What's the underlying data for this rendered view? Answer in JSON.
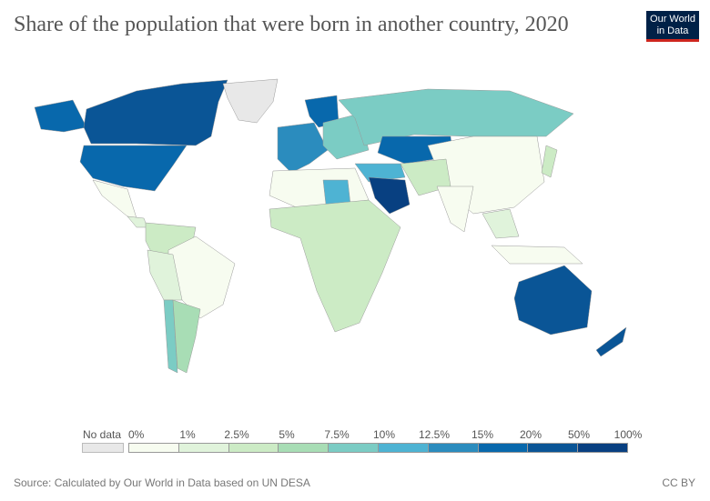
{
  "title": "Share of the population that were born in another country, 2020",
  "logo": {
    "line1": "Our World",
    "line2": "in Data"
  },
  "legend": {
    "no_data_label": "No data",
    "no_data_color": "#e8e8e8",
    "ticks": [
      "0%",
      "1%",
      "2.5%",
      "5%",
      "7.5%",
      "10%",
      "12.5%",
      "15%",
      "20%",
      "50%",
      "100%"
    ],
    "colors": [
      "#f7fcf0",
      "#e0f3db",
      "#ccebc5",
      "#a8ddb5",
      "#7bccc4",
      "#4eb3d3",
      "#2b8cbe",
      "#0868ac",
      "#0a5596",
      "#084081"
    ]
  },
  "source": "Source: Calculated by Our World in Data based on UN DESA",
  "license": "CC BY"
}
